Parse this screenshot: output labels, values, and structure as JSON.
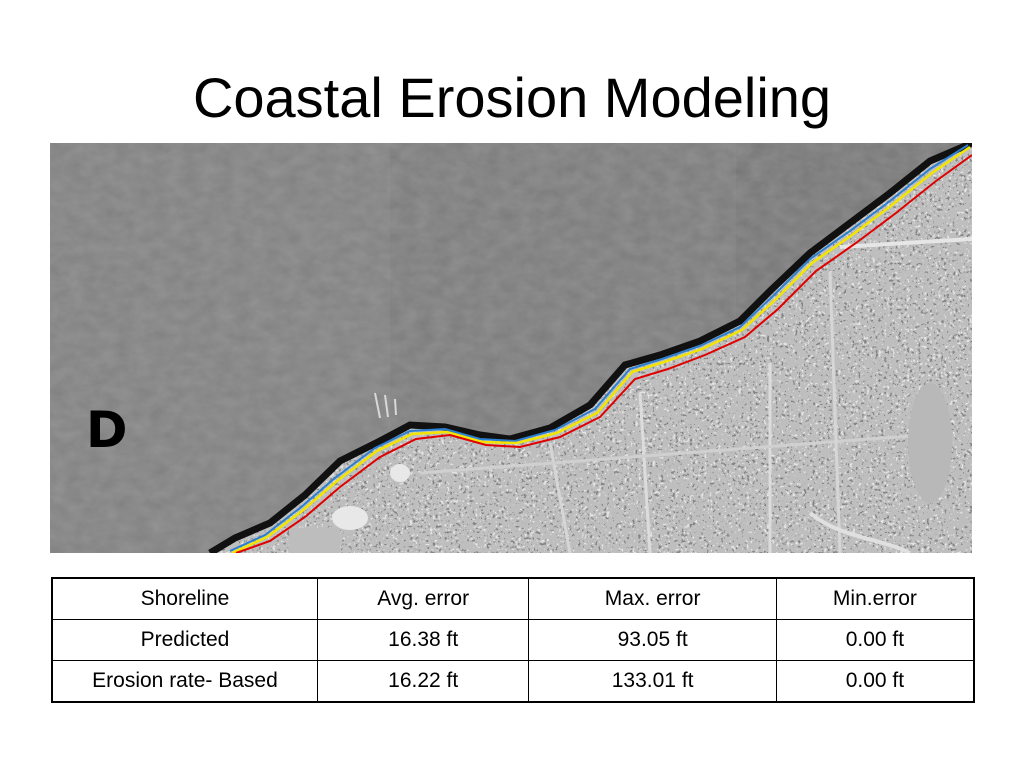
{
  "slide": {
    "title": "Coastal Erosion Modeling",
    "panel_letter": "D",
    "legend_colors": {
      "line_red": "#e00000",
      "line_yellow": "#f2e600",
      "line_blue": "#2a7fd0"
    }
  },
  "table": {
    "headers": [
      "Shoreline",
      "Avg. error",
      "Max. error",
      "Min.error"
    ],
    "rows": [
      [
        "Predicted",
        "16.38 ft",
        "93.05 ft",
        "0.00 ft"
      ],
      [
        "Erosion rate- Based",
        "16.22 ft",
        "133.01 ft",
        "0.00 ft"
      ]
    ]
  }
}
